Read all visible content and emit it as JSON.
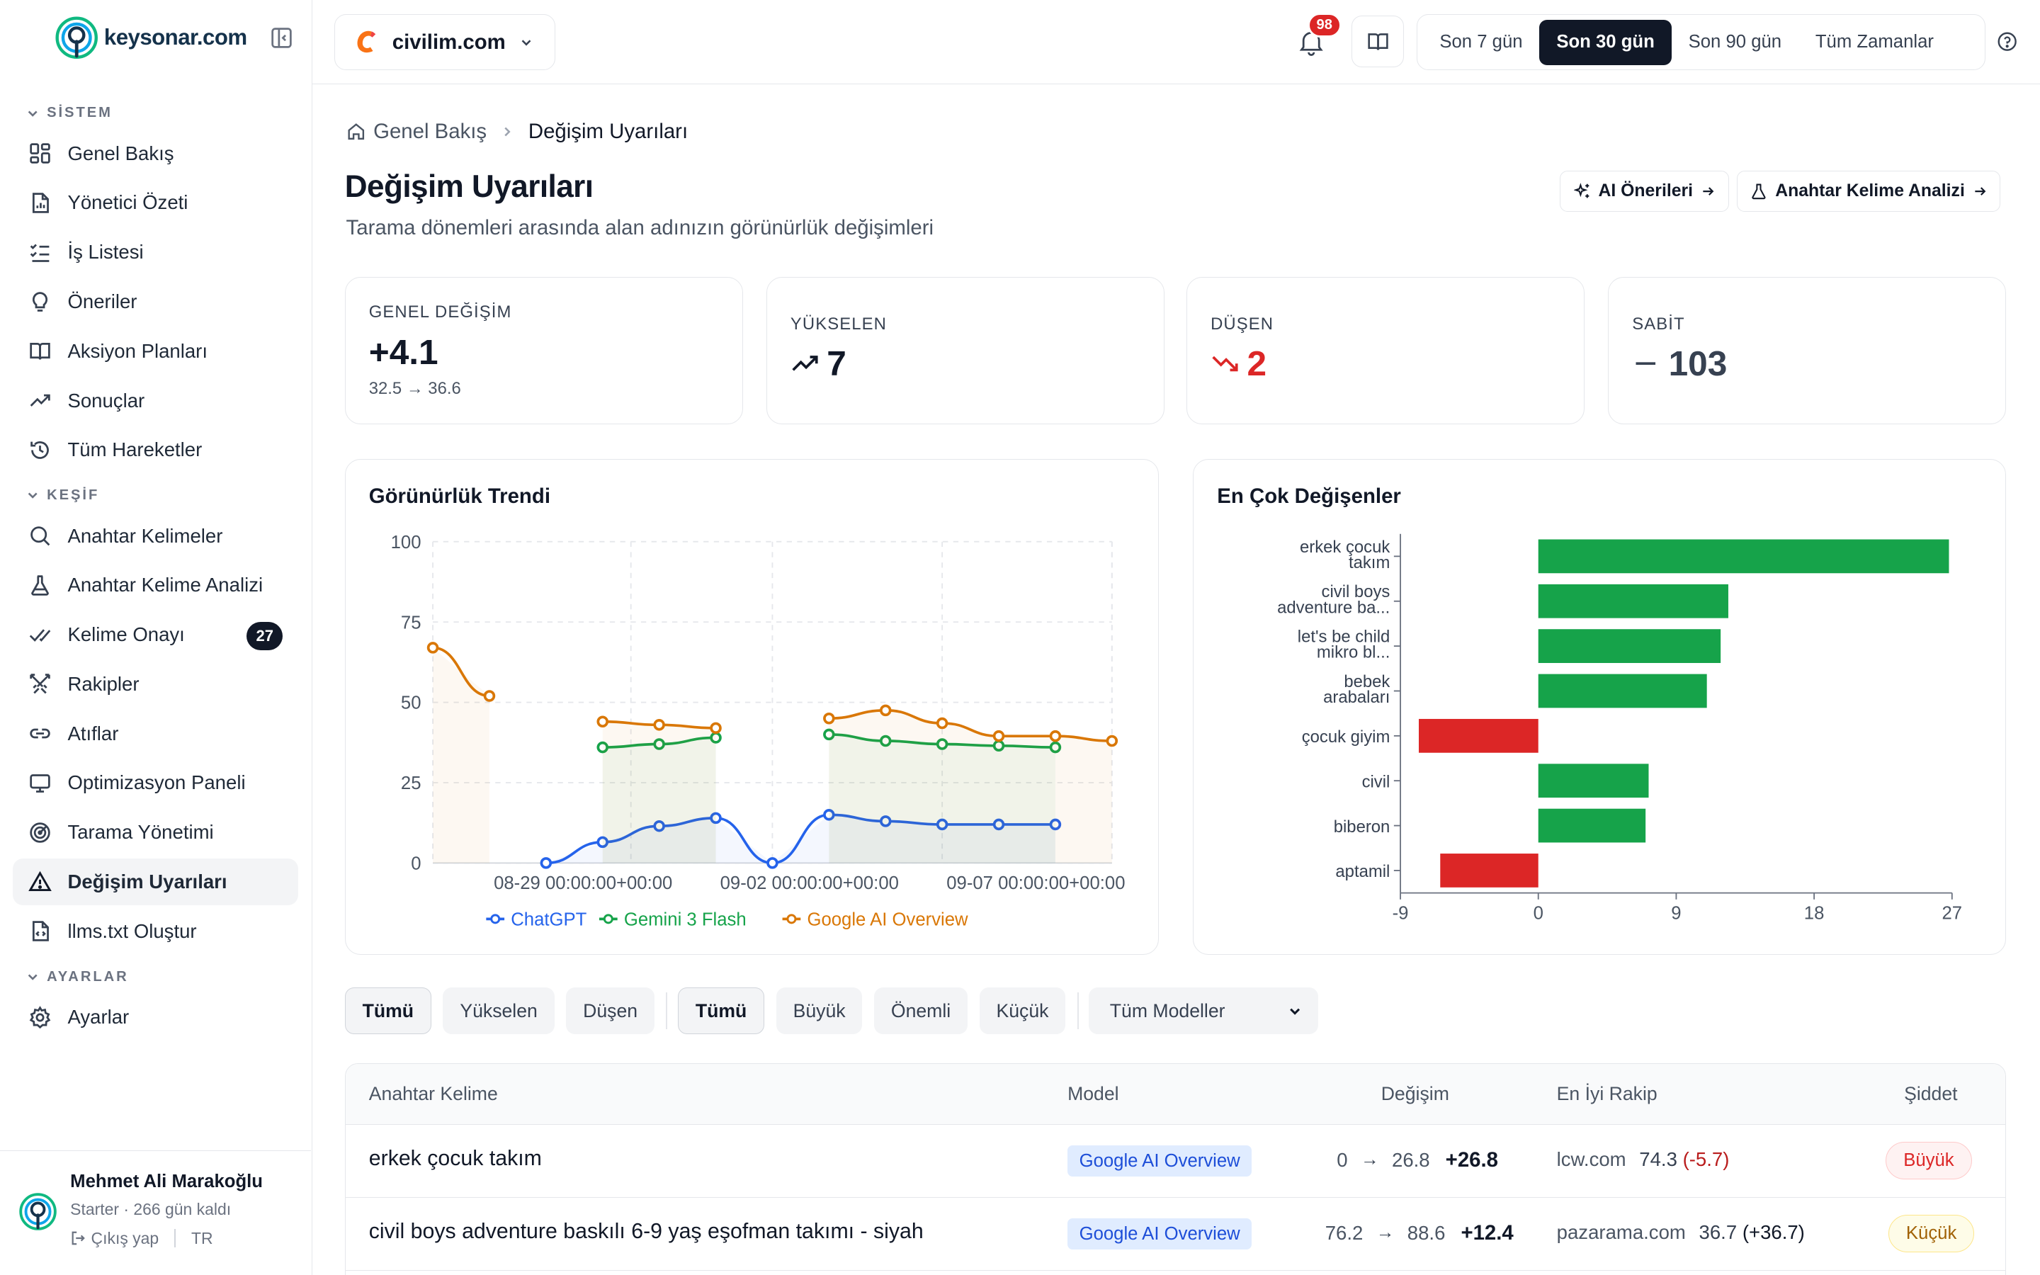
{
  "brand": {
    "logo_text": "keysonar.com"
  },
  "sidebar": {
    "sections": [
      {
        "label": "SİSTEM"
      },
      {
        "label": "KEŞİF"
      },
      {
        "label": "AYARLAR"
      }
    ],
    "items": [
      {
        "label": "Genel Bakış",
        "icon": "dashboard-icon"
      },
      {
        "label": "Yönetici Özeti",
        "icon": "document-chart-icon"
      },
      {
        "label": "İş Listesi",
        "icon": "checklist-icon"
      },
      {
        "label": "Öneriler",
        "icon": "lightbulb-icon"
      },
      {
        "label": "Aksiyon Planları",
        "icon": "book-icon"
      },
      {
        "label": "Sonuçlar",
        "icon": "trending-up-icon"
      },
      {
        "label": "Tüm Hareketler",
        "icon": "history-icon"
      },
      {
        "label": "Anahtar Kelimeler",
        "icon": "search-icon"
      },
      {
        "label": "Anahtar Kelime Analizi",
        "icon": "flask-icon"
      },
      {
        "label": "Kelime Onayı",
        "icon": "double-check-icon",
        "badge": "27"
      },
      {
        "label": "Rakipler",
        "icon": "swords-icon"
      },
      {
        "label": "Atıflar",
        "icon": "link-icon"
      },
      {
        "label": "Optimizasyon Paneli",
        "icon": "monitor-icon"
      },
      {
        "label": "Tarama Yönetimi",
        "icon": "radar-icon"
      },
      {
        "label": "Değişim Uyarıları",
        "icon": "alert-triangle-icon",
        "active": true
      },
      {
        "label": "llms.txt Oluştur",
        "icon": "file-code-icon"
      },
      {
        "label": "Ayarlar",
        "icon": "gear-icon"
      }
    ],
    "user": {
      "name": "Mehmet Ali Marakoğlu",
      "plan": "Starter · 266 gün kaldı",
      "logout": "Çıkış yap",
      "lang": "TR"
    }
  },
  "topbar": {
    "site": "civilim.com",
    "notifications": "98",
    "ranges": [
      "Son 7 gün",
      "Son 30 gün",
      "Son 90 gün",
      "Tüm Zamanlar"
    ],
    "active_range": "Son 30 gün"
  },
  "page": {
    "breadcrumb": [
      "Genel Bakış",
      "Değişim Uyarıları"
    ],
    "title": "Değişim Uyarıları",
    "subtitle": "Tarama dönemleri arasında alan adınızın görünürlük değişimleri",
    "actions": [
      "AI Önerileri",
      "Anahtar Kelime Analizi"
    ]
  },
  "stats": [
    {
      "label": "GENEL DEĞİŞİM",
      "value": "+4.1",
      "detail": "32.5 → 36.6"
    },
    {
      "label": "YÜKSELEN",
      "value": "7",
      "icon": "trending-up-icon"
    },
    {
      "label": "DÜŞEN",
      "value": "2",
      "icon": "trending-down-icon",
      "color": "#dc2626"
    },
    {
      "label": "SABİT",
      "value": "103",
      "icon": "minus-icon"
    }
  ],
  "trend": {
    "title": "Görünürlük Trendi",
    "chart_data": {
      "type": "line",
      "ylim": [
        0,
        100
      ],
      "yticks": [
        0,
        25,
        50,
        75,
        100
      ],
      "x_tick_labels": [
        "08-29 00:00:00+00:00",
        "09-02 00:00:00+00:00",
        "09-07 00:00:00+00:00"
      ],
      "x_slots": 13,
      "series": [
        {
          "name": "ChatGPT",
          "color": "#2563eb",
          "values": [
            null,
            null,
            0,
            6.5,
            11.5,
            14,
            0,
            15,
            13,
            12,
            12,
            12,
            null
          ]
        },
        {
          "name": "Gemini 3 Flash",
          "color": "#16a34a",
          "values": [
            null,
            null,
            null,
            36,
            37,
            39,
            null,
            40,
            38,
            37,
            36.5,
            36,
            null
          ]
        },
        {
          "name": "Google AI Overview",
          "color": "#d97706",
          "values": [
            67,
            52,
            null,
            44,
            43,
            42,
            null,
            45,
            47.5,
            43.5,
            39.5,
            39.5,
            38
          ]
        }
      ]
    }
  },
  "movers": {
    "title": "En Çok Değişenler",
    "chart_data": {
      "type": "bar",
      "orientation": "horizontal",
      "xlim": [
        -9,
        27
      ],
      "xticks": [
        -9,
        0,
        9,
        18,
        27
      ],
      "categories": [
        [
          "erkek çocuk",
          "takım"
        ],
        [
          "civil boys",
          "adventure ba..."
        ],
        [
          "let's be child",
          "mikro bl..."
        ],
        [
          "bebek",
          "arabaları"
        ],
        [
          "çocuk giyim"
        ],
        [
          "civil"
        ],
        [
          "biberon"
        ],
        [
          "aptamil"
        ]
      ],
      "values": [
        26.8,
        12.4,
        11.9,
        11,
        -7.8,
        7.2,
        7,
        -6.4
      ]
    }
  },
  "filters": {
    "direction": [
      "Tümü",
      "Yükselen",
      "Düşen"
    ],
    "severity": [
      "Tümü",
      "Büyük",
      "Önemli",
      "Küçük"
    ],
    "model": "Tüm Modeller"
  },
  "table": {
    "columns": [
      "Anahtar Kelime",
      "Model",
      "Değişim",
      "En İyi Rakip",
      "Şiddet"
    ],
    "rows": [
      {
        "keyword": "erkek çocuk takım",
        "model": "Google AI Overview",
        "from": "0",
        "to": "26.8",
        "delta": "+26.8",
        "competitor": "lcw.com",
        "competitor_score": "74.3",
        "competitor_delta": "(-5.7)",
        "severity": "Büyük"
      },
      {
        "keyword": "civil boys adventure baskılı 6-9 yaş eşofman takımı - siyah",
        "model": "Google AI Overview",
        "from": "76.2",
        "to": "88.6",
        "delta": "+12.4",
        "competitor": "pazarama.com",
        "competitor_score": "36.7",
        "competitor_delta": "(+36.7)",
        "severity": "Küçük"
      }
    ]
  }
}
